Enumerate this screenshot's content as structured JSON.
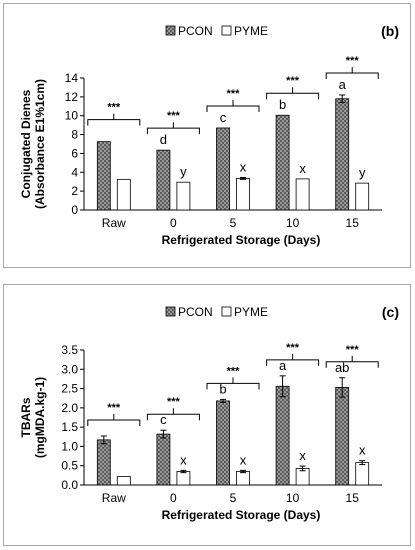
{
  "chart_data": [
    {
      "type": "bar",
      "panel_label": "(b)",
      "legend": {
        "placement": "top-center",
        "items": [
          "PCON",
          "PYME"
        ]
      },
      "xlabel": "Refrigerated Storage (Days)",
      "ylabel_lines": [
        "Conjugated Dienes",
        "(Absorbance E1%1cm)"
      ],
      "ylim": [
        0,
        14
      ],
      "yticks": [
        "0",
        "2",
        "4",
        "6",
        "8",
        "10",
        "12",
        "14"
      ],
      "categories": [
        "Raw",
        "0",
        "5",
        "10",
        "15"
      ],
      "series": [
        {
          "name": "PCON",
          "values": [
            7.25,
            6.35,
            8.7,
            10.05,
            11.8
          ],
          "errors": [
            0,
            0,
            0,
            0,
            0.4
          ],
          "letters": [
            "",
            "d",
            "c",
            "b",
            "a"
          ],
          "pattern": "gray-checker"
        },
        {
          "name": "PYME",
          "values": [
            3.25,
            2.95,
            3.35,
            3.3,
            2.85
          ],
          "errors": [
            0,
            0,
            0.1,
            0,
            0
          ],
          "letters": [
            "",
            "y",
            "x",
            "x",
            "y"
          ],
          "pattern": "white"
        }
      ],
      "significance": [
        "***",
        "***",
        "***",
        "***",
        "***"
      ],
      "grid": false
    },
    {
      "type": "bar",
      "panel_label": "(c)",
      "legend": {
        "placement": "top-center",
        "items": [
          "PCON",
          "PYME"
        ]
      },
      "xlabel": "Refrigerated Storage (Days)",
      "ylabel_lines": [
        "TBARs",
        "(mgMDA.kg-1)"
      ],
      "ylim": [
        0,
        3.5
      ],
      "yticks": [
        "0.0",
        "0.5",
        "1.0",
        "1.5",
        "2.0",
        "2.5",
        "3.0",
        "3.5"
      ],
      "categories": [
        "Raw",
        "0",
        "5",
        "10",
        "15"
      ],
      "series": [
        {
          "name": "PCON",
          "values": [
            1.17,
            1.32,
            2.18,
            2.56,
            2.53
          ],
          "errors": [
            0.1,
            0.1,
            0.04,
            0.27,
            0.25
          ],
          "letters": [
            "",
            "c",
            "b",
            "a",
            "ab"
          ],
          "pattern": "gray-checker"
        },
        {
          "name": "PYME",
          "values": [
            0.22,
            0.35,
            0.35,
            0.43,
            0.58
          ],
          "errors": [
            0,
            0.03,
            0.03,
            0.06,
            0.05
          ],
          "letters": [
            "",
            "x",
            "x",
            "x",
            "x"
          ],
          "pattern": "white"
        }
      ],
      "significance": [
        "***",
        "***",
        "***",
        "***",
        "***"
      ],
      "grid": false
    }
  ]
}
